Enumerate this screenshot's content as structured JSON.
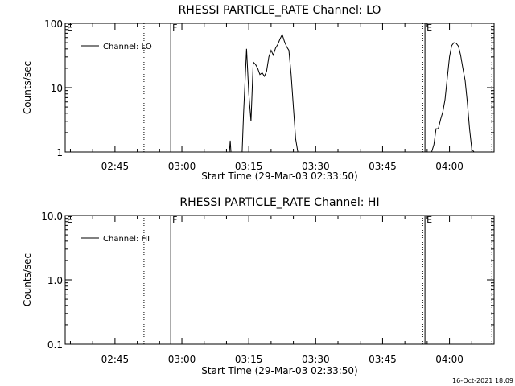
{
  "footer": {
    "timestamp": "16-Oct-2021 18:09"
  },
  "chart_data": [
    {
      "type": "line",
      "title": "RHESSI PARTICLE_RATE Channel: LO",
      "xlabel": "Start Time (29-Mar-03 02:33:50)",
      "ylabel": "Counts/sec",
      "yscale": "log",
      "ylim": [
        1,
        100
      ],
      "xlim": [
        "02:33:50",
        "04:10:00"
      ],
      "yticks": [
        "1",
        "10",
        "100"
      ],
      "xticks": [
        "02:45",
        "03:00",
        "03:15",
        "03:30",
        "03:45",
        "04:00"
      ],
      "grid": false,
      "legend": {
        "placement": "top-left",
        "entries": [
          "Channel: LO"
        ]
      },
      "markers": [
        {
          "label": "E",
          "time": "02:33:50",
          "style": "solid"
        },
        {
          "label": "",
          "time": "02:51:30",
          "style": "dotted"
        },
        {
          "label": "F",
          "time": "02:57:30",
          "style": "solid"
        },
        {
          "label": "E",
          "time": "03:54:30",
          "style": "solid"
        },
        {
          "label": "",
          "time": "03:54:00",
          "style": "dotted"
        },
        {
          "label": "",
          "time": "04:09:30",
          "style": "dotted"
        }
      ],
      "series": [
        {
          "name": "Channel: LO",
          "segments": [
            {
              "x": [
                "03:10:40",
                "03:10:50",
                "03:11:00",
                "03:13:30",
                "03:13:50",
                "03:14:30",
                "03:15:00",
                "03:15:30",
                "03:16:00",
                "03:16:30",
                "03:17:00",
                "03:17:30",
                "03:18:00",
                "03:18:30",
                "03:19:00",
                "03:19:30",
                "03:20:00",
                "03:20:30",
                "03:21:00",
                "03:21:30",
                "03:22:00",
                "03:22:30",
                "03:23:00",
                "03:23:30",
                "03:24:00",
                "03:24:30",
                "03:25:00",
                "03:25:30",
                "03:26:00",
                "03:26:30"
              ],
              "y": [
                1,
                1.5,
                1,
                1,
                4,
                40,
                8,
                3,
                25,
                23,
                20,
                16,
                17,
                15,
                18,
                30,
                38,
                32,
                41,
                47,
                57,
                67,
                52,
                43,
                38,
                16,
                5,
                1.6,
                1,
                1
              ]
            },
            {
              "x": [
                "03:56:00",
                "03:56:30",
                "03:57:00",
                "03:57:30",
                "03:58:00",
                "03:58:30",
                "03:59:00",
                "03:59:30",
                "04:00:00",
                "04:00:30",
                "04:01:00",
                "04:01:30",
                "04:02:00",
                "04:02:30",
                "04:03:00",
                "04:03:30",
                "04:04:00",
                "04:04:30",
                "04:05:00",
                "04:05:30"
              ],
              "y": [
                1,
                1.3,
                2.3,
                2.3,
                3.2,
                4.2,
                6.5,
                14,
                30,
                45,
                50,
                49,
                44,
                32,
                20,
                13,
                6,
                2.3,
                1.1,
                1
              ]
            }
          ]
        }
      ]
    },
    {
      "type": "line",
      "title": "RHESSI PARTICLE_RATE Channel: HI",
      "xlabel": "Start Time (29-Mar-03 02:33:50)",
      "ylabel": "Counts/sec",
      "yscale": "log",
      "ylim": [
        0.1,
        10
      ],
      "xlim": [
        "02:33:50",
        "04:10:00"
      ],
      "yticks": [
        "0.1",
        "1.0",
        "10.0"
      ],
      "xticks": [
        "02:45",
        "03:00",
        "03:15",
        "03:30",
        "03:45",
        "04:00"
      ],
      "grid": false,
      "legend": {
        "placement": "top-left",
        "entries": [
          "Channel: HI"
        ]
      },
      "markers": [
        {
          "label": "E",
          "time": "02:33:50",
          "style": "solid"
        },
        {
          "label": "",
          "time": "02:51:30",
          "style": "dotted"
        },
        {
          "label": "F",
          "time": "02:57:30",
          "style": "solid"
        },
        {
          "label": "E",
          "time": "03:54:30",
          "style": "solid"
        },
        {
          "label": "",
          "time": "03:54:00",
          "style": "dotted"
        },
        {
          "label": "",
          "time": "04:09:30",
          "style": "dotted"
        }
      ],
      "series": [
        {
          "name": "Channel: HI",
          "segments": []
        }
      ]
    }
  ]
}
